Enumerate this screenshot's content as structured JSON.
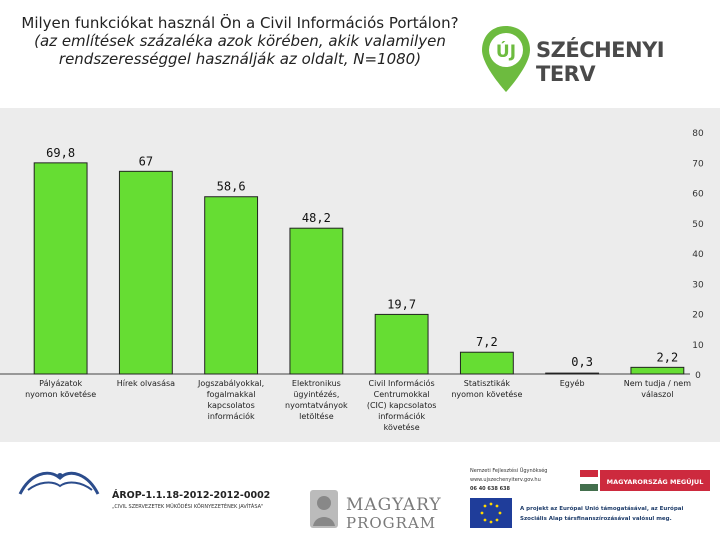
{
  "title_line1": "Milyen funkciókat használ Ön a Civil Információs Portálon?",
  "title_line2": "(az említések százaléka azok körében, akik valamilyen rendszerességgel használják az oldalt, N=1080)",
  "brand": {
    "logo_mark": "ÚJ",
    "logo_text": "SZÉCHENYI TERV",
    "green": "#6dbb3f"
  },
  "colors": {
    "bar": "#66dd33",
    "bar_stroke": "#222222",
    "background": "#ececec"
  },
  "chart_data": {
    "type": "bar",
    "categories": [
      [
        "Pályázatok",
        "nyomon követése"
      ],
      [
        "Hírek olvasása"
      ],
      [
        "Jogszabályokkal,",
        "fogalmakkal",
        "kapcsolatos",
        "információk"
      ],
      [
        "Elektronikus",
        "ügyintézés,",
        "nyomtatványok",
        "letöltése"
      ],
      [
        "Civil Információs",
        "Centrumokkal",
        "(CIC) kapcsolatos",
        "információk",
        "követése"
      ],
      [
        "Statisztikák",
        "nyomon követése"
      ],
      [
        "Egyéb"
      ],
      [
        "Nem tudja / nem",
        "válaszol"
      ]
    ],
    "values": [
      69.8,
      67,
      58.6,
      48.2,
      19.7,
      7.2,
      0.3,
      2.2
    ],
    "value_labels": [
      "69,8",
      "67",
      "58,6",
      "48,2",
      "19,7",
      "7,2",
      "0,3",
      "2,2"
    ],
    "y_ticks": [
      0,
      10,
      20,
      30,
      40,
      50,
      60,
      70,
      80
    ],
    "ylim": [
      0,
      80
    ],
    "axis_position": "right",
    "grid": false
  },
  "footer": {
    "program_code": "ÁROP-1.1.18-2012-2012-0002",
    "program_subtitle": "„CIVIL SZERVEZETEK MŰKÖDÉSI KÖRNYEZETÉNEK JAVÍTÁSA\"",
    "magyary_line1": "MAGYARY",
    "magyary_line2": "PROGRAM",
    "agency_line1": "Nemzeti Fejlesztési Ügynökség",
    "agency_line2": "www.ujszechenyiterv.gov.hu",
    "agency_line3": "06 40 638 638",
    "hungary_badge": "MAGYARORSZÁG MEGÚJUL",
    "eu_line1": "A projekt az Európai Unió támogatásával, az Európai",
    "eu_line2": "Szociális Alap társfinanszírozásával valósul meg."
  }
}
